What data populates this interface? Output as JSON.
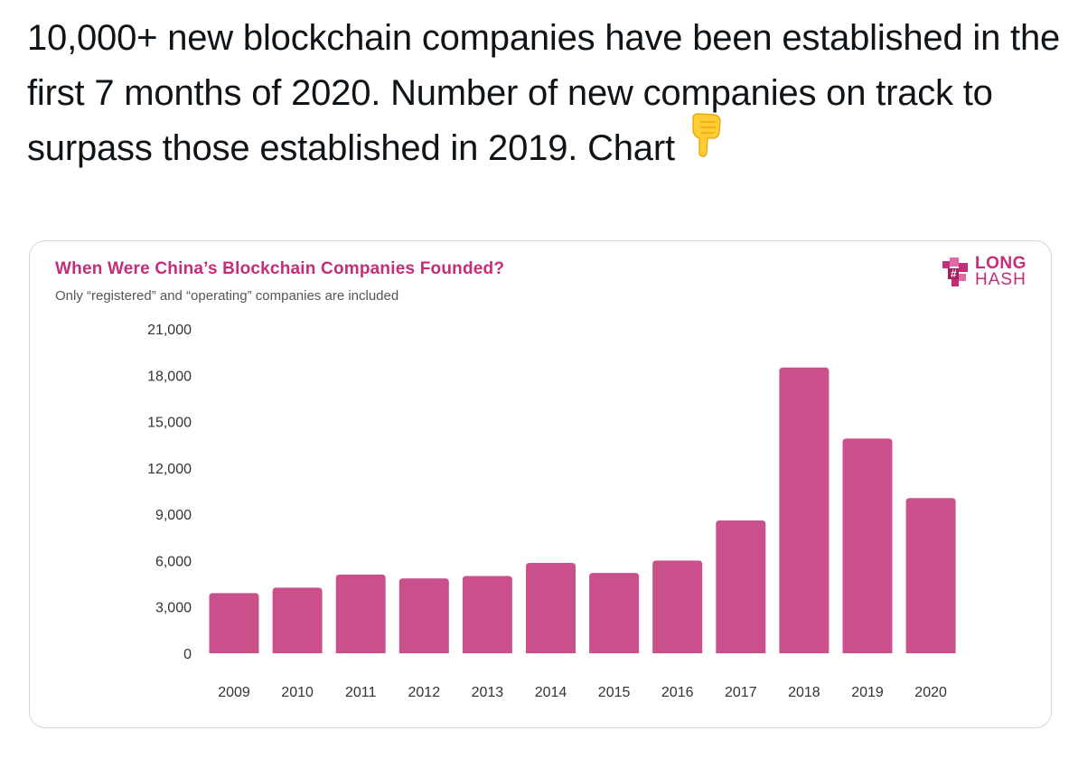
{
  "tweet": {
    "text": "10,000+ new blockchain companies have been established in the first 7 months of 2020. Number of new companies on track to surpass those established in 2019. Chart",
    "emoji": "backhand-index-pointing-down-icon"
  },
  "logo": {
    "line1": "LONG",
    "line2": "HASH"
  },
  "colors": {
    "bar": "#c9508b",
    "title": "#c52c7a",
    "text": "#0f1419",
    "axis_text": "#333333",
    "border": "#cfd9de"
  },
  "chart_data": {
    "type": "bar",
    "title": "When Were China’s Blockchain Companies Founded?",
    "subtitle": "Only “registered” and “operating” companies are included",
    "categories": [
      "2009",
      "2010",
      "2011",
      "2012",
      "2013",
      "2014",
      "2015",
      "2016",
      "2017",
      "2018",
      "2019",
      "2020"
    ],
    "values": [
      3900,
      4250,
      5100,
      4850,
      5000,
      5850,
      5200,
      6000,
      8600,
      18500,
      13900,
      10050
    ],
    "yticks": [
      "0",
      "3,000",
      "6,000",
      "9,000",
      "12,000",
      "15,000",
      "18,000",
      "21,000"
    ],
    "ylim": [
      0,
      21000
    ],
    "xlabel": "",
    "ylabel": "",
    "grid": false,
    "legend": "none"
  }
}
